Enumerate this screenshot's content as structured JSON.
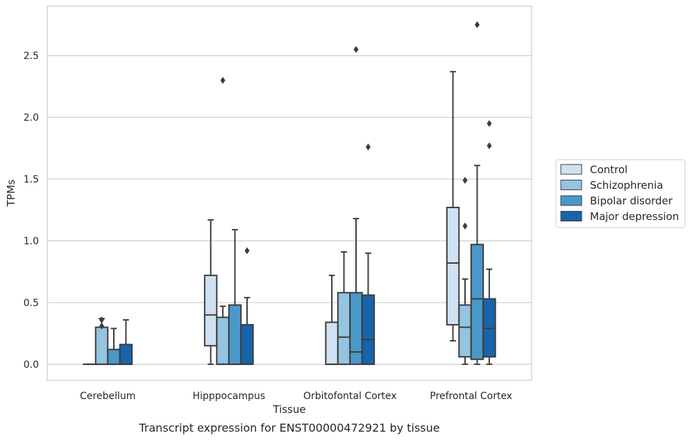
{
  "chart_data": {
    "type": "boxplot",
    "caption": "Transcript expression for ENST00000472921 by tissue",
    "xlabel": "Tissue",
    "ylabel": "TPMs",
    "ylim": [
      -0.13,
      2.9
    ],
    "yticks": [
      0.0,
      0.5,
      1.0,
      1.5,
      2.0,
      2.5
    ],
    "ytick_labels": [
      "0.0",
      "0.5",
      "1.0",
      "1.5",
      "2.0",
      "2.5"
    ],
    "grid": "horizontal",
    "legend_position": "right",
    "categories": [
      "Cerebellum",
      "Hipppocampus",
      "Orbitofontal Cortex",
      "Prefrontal Cortex"
    ],
    "series": [
      {
        "name": "Control",
        "color": "#d0e1f2",
        "boxes": [
          {
            "whisker_low": 0.0,
            "q1": 0.0,
            "median": 0.0,
            "q3": 0.0,
            "whisker_high": 0.0,
            "outliers": []
          },
          {
            "whisker_low": 0.0,
            "q1": 0.15,
            "median": 0.4,
            "q3": 0.72,
            "whisker_high": 1.17,
            "outliers": []
          },
          {
            "whisker_low": 0.0,
            "q1": 0.0,
            "median": 0.0,
            "q3": 0.34,
            "whisker_high": 0.72,
            "outliers": []
          },
          {
            "whisker_low": 0.19,
            "q1": 0.32,
            "median": 0.82,
            "q3": 1.27,
            "whisker_high": 2.37,
            "outliers": []
          }
        ]
      },
      {
        "name": "Schizophrenia",
        "color": "#94c4df",
        "boxes": [
          {
            "whisker_low": 0.0,
            "q1": 0.0,
            "median": 0.0,
            "q3": 0.3,
            "whisker_high": 0.37,
            "outliers": [
              0.31,
              0.36
            ]
          },
          {
            "whisker_low": 0.0,
            "q1": 0.0,
            "median": 0.0,
            "q3": 0.38,
            "whisker_high": 0.47,
            "outliers": [
              2.3
            ]
          },
          {
            "whisker_low": 0.0,
            "q1": 0.0,
            "median": 0.22,
            "q3": 0.58,
            "whisker_high": 0.91,
            "outliers": []
          },
          {
            "whisker_low": 0.0,
            "q1": 0.06,
            "median": 0.3,
            "q3": 0.48,
            "whisker_high": 0.69,
            "outliers": [
              1.12,
              1.49
            ]
          }
        ]
      },
      {
        "name": "Bipolar disorder",
        "color": "#4a98c9",
        "boxes": [
          {
            "whisker_low": 0.0,
            "q1": 0.0,
            "median": 0.0,
            "q3": 0.12,
            "whisker_high": 0.29,
            "outliers": []
          },
          {
            "whisker_low": 0.0,
            "q1": 0.0,
            "median": 0.0,
            "q3": 0.48,
            "whisker_high": 1.09,
            "outliers": []
          },
          {
            "whisker_low": 0.0,
            "q1": 0.0,
            "median": 0.1,
            "q3": 0.58,
            "whisker_high": 1.18,
            "outliers": [
              2.55
            ]
          },
          {
            "whisker_low": 0.0,
            "q1": 0.04,
            "median": 0.53,
            "q3": 0.97,
            "whisker_high": 1.61,
            "outliers": [
              2.75
            ]
          }
        ]
      },
      {
        "name": "Major depression",
        "color": "#1764ab",
        "boxes": [
          {
            "whisker_low": 0.0,
            "q1": 0.0,
            "median": 0.0,
            "q3": 0.16,
            "whisker_high": 0.36,
            "outliers": []
          },
          {
            "whisker_low": 0.0,
            "q1": 0.0,
            "median": 0.0,
            "q3": 0.32,
            "whisker_high": 0.54,
            "outliers": [
              0.92
            ]
          },
          {
            "whisker_low": 0.0,
            "q1": 0.0,
            "median": 0.2,
            "q3": 0.56,
            "whisker_high": 0.9,
            "outliers": [
              1.76
            ]
          },
          {
            "whisker_low": 0.0,
            "q1": 0.06,
            "median": 0.29,
            "q3": 0.53,
            "whisker_high": 0.77,
            "outliers": [
              1.77,
              1.95
            ]
          }
        ]
      }
    ]
  }
}
